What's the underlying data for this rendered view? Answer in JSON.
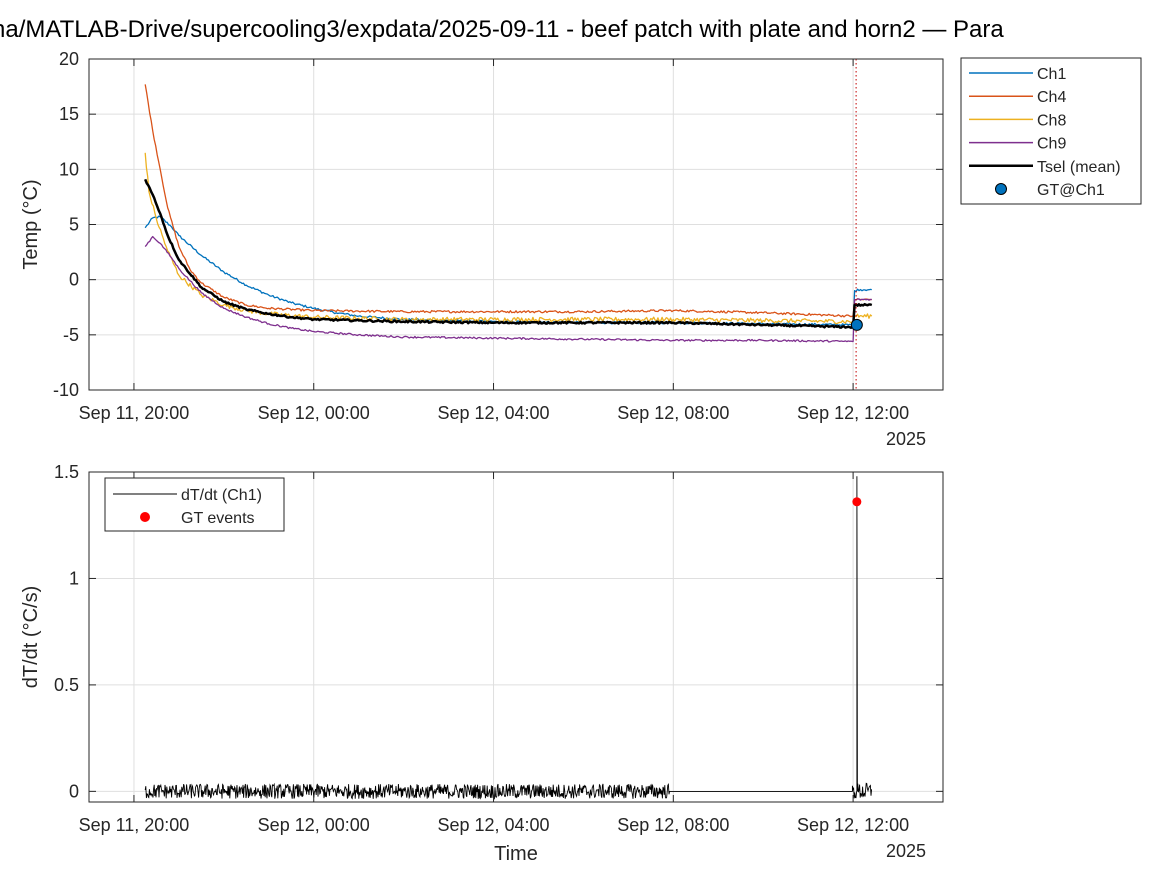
{
  "window": {
    "title": "ha/MATLAB-Drive/supercooling3/expdata/2025-09-11 - beef patch with plate and horn2 — Para"
  },
  "chart_data": [
    {
      "type": "line",
      "x_axis_kind": "datetime",
      "xlim": [
        "2025-09-11 19:00",
        "2025-09-12 14:00"
      ],
      "xticks": [
        "2025-09-11 20:00",
        "2025-09-12 00:00",
        "2025-09-12 04:00",
        "2025-09-12 08:00",
        "2025-09-12 12:00"
      ],
      "xtick_labels": [
        "Sep 11, 20:00",
        "Sep 12, 00:00",
        "Sep 12, 04:00",
        "Sep 12, 08:00",
        "Sep 12, 12:00"
      ],
      "x_secondary_label": "2025",
      "xlabel": "",
      "ylabel": "Temp (°C)",
      "ylim": [
        -10,
        20
      ],
      "yticks": [
        -10,
        -5,
        0,
        5,
        10,
        15,
        20
      ],
      "grid": true,
      "legend_position": "outside-right",
      "series": [
        {
          "name": "Ch1",
          "color": "#0072BD",
          "noise": 0.1,
          "x": [
            "2025-09-11 20:15",
            "2025-09-11 20:25",
            "2025-09-11 20:35",
            "2025-09-11 20:50",
            "2025-09-11 21:00",
            "2025-09-11 21:30",
            "2025-09-11 22:00",
            "2025-09-11 22:30",
            "2025-09-11 23:00",
            "2025-09-11 23:30",
            "2025-09-12 00:00",
            "2025-09-12 00:30",
            "2025-09-12 01:00",
            "2025-09-12 02:00",
            "2025-09-12 04:00",
            "2025-09-12 06:00",
            "2025-09-12 08:00",
            "2025-09-12 10:00",
            "2025-09-12 11:59",
            "2025-09-12 12:00",
            "2025-09-12 12:02",
            "2025-09-12 12:10",
            "2025-09-12 12:25"
          ],
          "y": [
            4.7,
            5.6,
            5.7,
            4.8,
            4.0,
            2.2,
            0.7,
            -0.5,
            -1.4,
            -2.1,
            -2.6,
            -3.0,
            -3.3,
            -3.6,
            -3.8,
            -3.9,
            -3.9,
            -4.0,
            -4.1,
            -4.1,
            -1.0,
            -0.9,
            -0.9
          ]
        },
        {
          "name": "Ch4",
          "color": "#D95319",
          "noise": 0.1,
          "x": [
            "2025-09-11 20:15",
            "2025-09-11 20:25",
            "2025-09-11 20:35",
            "2025-09-11 20:45",
            "2025-09-11 21:00",
            "2025-09-11 21:15",
            "2025-09-11 21:30",
            "2025-09-11 22:00",
            "2025-09-11 22:30",
            "2025-09-11 23:00",
            "2025-09-12 00:00",
            "2025-09-12 02:00",
            "2025-09-12 04:00",
            "2025-09-12 06:00",
            "2025-09-12 08:00",
            "2025-09-12 10:00",
            "2025-09-12 11:59",
            "2025-09-12 12:00",
            "2025-09-12 12:02",
            "2025-09-12 12:25"
          ],
          "y": [
            17.7,
            13.5,
            10.0,
            6.5,
            3.0,
            0.9,
            -0.3,
            -1.6,
            -2.3,
            -2.6,
            -2.8,
            -2.9,
            -2.9,
            -2.9,
            -2.8,
            -3.0,
            -3.3,
            -3.3,
            -1.8,
            -1.8
          ]
        },
        {
          "name": "Ch8",
          "color": "#EDB120",
          "noise": 0.2,
          "x": [
            "2025-09-11 20:15",
            "2025-09-11 20:20",
            "2025-09-11 20:30",
            "2025-09-11 20:45",
            "2025-09-11 21:00",
            "2025-09-11 21:30",
            "2025-09-11 22:00",
            "2025-09-11 22:30",
            "2025-09-11 23:00",
            "2025-09-12 00:00",
            "2025-09-12 02:00",
            "2025-09-12 04:00",
            "2025-09-12 06:00",
            "2025-09-12 08:00",
            "2025-09-12 10:00",
            "2025-09-12 11:59",
            "2025-09-12 12:00",
            "2025-09-12 12:02",
            "2025-09-12 12:25"
          ],
          "y": [
            11.5,
            8.0,
            5.5,
            2.6,
            0.4,
            -1.4,
            -2.3,
            -2.8,
            -3.1,
            -3.4,
            -3.6,
            -3.6,
            -3.6,
            -3.6,
            -3.7,
            -3.8,
            -3.8,
            -3.3,
            -3.3
          ]
        },
        {
          "name": "Ch9",
          "color": "#7E2F8E",
          "noise": 0.08,
          "x": [
            "2025-09-11 20:15",
            "2025-09-11 20:25",
            "2025-09-11 20:35",
            "2025-09-11 20:50",
            "2025-09-11 21:00",
            "2025-09-11 21:30",
            "2025-09-11 22:00",
            "2025-09-11 22:30",
            "2025-09-11 23:00",
            "2025-09-11 23:30",
            "2025-09-12 00:00",
            "2025-09-12 01:00",
            "2025-09-12 02:00",
            "2025-09-12 04:00",
            "2025-09-12 06:00",
            "2025-09-12 08:00",
            "2025-09-12 10:00",
            "2025-09-12 11:59",
            "2025-09-12 12:00",
            "2025-09-12 12:02",
            "2025-09-12 12:25"
          ],
          "y": [
            3.0,
            3.9,
            3.3,
            2.0,
            1.0,
            -1.2,
            -2.6,
            -3.4,
            -4.0,
            -4.4,
            -4.7,
            -5.0,
            -5.2,
            -5.3,
            -5.4,
            -5.5,
            -5.5,
            -5.6,
            -5.6,
            -1.8,
            -1.8
          ]
        },
        {
          "name": "Tsel (mean)",
          "color": "#000000",
          "width": 2.5,
          "noise": 0.08,
          "x": [
            "2025-09-11 20:15",
            "2025-09-11 20:25",
            "2025-09-11 20:35",
            "2025-09-11 20:45",
            "2025-09-11 21:00",
            "2025-09-11 21:30",
            "2025-09-11 22:00",
            "2025-09-11 22:30",
            "2025-09-11 23:00",
            "2025-09-11 23:30",
            "2025-09-12 00:00",
            "2025-09-12 01:00",
            "2025-09-12 02:00",
            "2025-09-12 04:00",
            "2025-09-12 06:00",
            "2025-09-12 08:00",
            "2025-09-12 10:00",
            "2025-09-12 11:59",
            "2025-09-12 12:00",
            "2025-09-12 12:02",
            "2025-09-12 12:25"
          ],
          "y": [
            9.1,
            7.7,
            6.0,
            4.0,
            1.8,
            -0.7,
            -2.0,
            -2.7,
            -3.1,
            -3.4,
            -3.6,
            -3.7,
            -3.8,
            -3.9,
            -3.9,
            -3.9,
            -4.1,
            -4.3,
            -4.3,
            -2.3,
            -2.3
          ]
        }
      ],
      "markers": [
        {
          "name": "GT@Ch1",
          "color": "#0072BD",
          "x": "2025-09-12 12:05",
          "y": -4.1
        }
      ],
      "vline": {
        "x": "2025-09-12 12:04",
        "color": "#C00000",
        "style": "dotted"
      }
    },
    {
      "type": "line",
      "x_axis_kind": "datetime",
      "xlim": [
        "2025-09-11 19:00",
        "2025-09-12 14:00"
      ],
      "xticks": [
        "2025-09-11 20:00",
        "2025-09-12 00:00",
        "2025-09-12 04:00",
        "2025-09-12 08:00",
        "2025-09-12 12:00"
      ],
      "xtick_labels": [
        "Sep 11, 20:00",
        "Sep 12, 00:00",
        "Sep 12, 04:00",
        "Sep 12, 08:00",
        "Sep 12, 12:00"
      ],
      "x_secondary_label": "2025",
      "xlabel": "Time",
      "ylabel": "dT/dt (°C/s)",
      "ylim": [
        -0.05,
        1.5
      ],
      "yticks": [
        0,
        0.5,
        1,
        1.5
      ],
      "ytick_labels": [
        "0",
        "0.5",
        "1",
        "1.5"
      ],
      "grid": true,
      "legend_position": "top-left",
      "series": [
        {
          "name": "dT/dt (Ch1)",
          "color": "#000000",
          "noisy_segments": [
            {
              "start": "2025-09-11 20:15",
              "end": "2025-09-12 07:55",
              "amplitude": 0.035
            },
            {
              "start": "2025-09-12 11:59",
              "end": "2025-09-12 12:25",
              "amplitude": 0.04
            }
          ],
          "flat_segment": {
            "start": "2025-09-12 07:55",
            "end": "2025-09-12 11:59",
            "y": 0
          },
          "spike": {
            "x": "2025-09-12 12:05",
            "y": 1.48
          }
        }
      ],
      "markers": [
        {
          "name": "GT events",
          "color": "#FF0000",
          "x": "2025-09-12 12:05",
          "y": 1.36
        }
      ]
    }
  ]
}
